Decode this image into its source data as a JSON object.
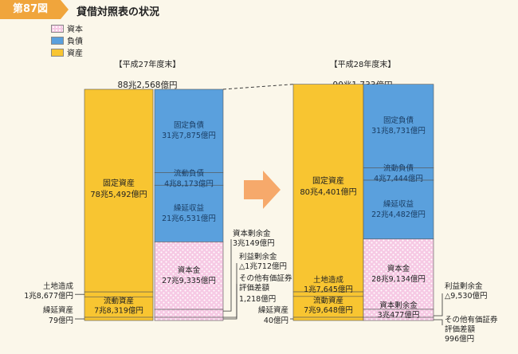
{
  "figure": {
    "badge": "第87図",
    "title": "貸借対照表の状況"
  },
  "legend": [
    {
      "label": "資本",
      "color": "#f6c9e4"
    },
    {
      "label": "負債",
      "color": "#5aa0dd"
    },
    {
      "label": "資産",
      "color": "#f8c531"
    }
  ],
  "colors": {
    "asset": "#f8c531",
    "liability": "#5aa0dd",
    "capital": "#f6c9e4",
    "arrow": "#f6a96b"
  },
  "chart_data": [
    {
      "type": "bar",
      "period": "【平成27年度末】",
      "total_label": "88兆2,568億円",
      "total_oku": 882568,
      "assets": [
        {
          "name": "固定資産",
          "value_label": "78兆5,492億円",
          "value_oku": 785492
        },
        {
          "name": "土地造成",
          "value_label": "1兆8,677億円",
          "value_oku": 18677
        },
        {
          "name": "流動資産",
          "value_label": "7兆8,319億円",
          "value_oku": 78319
        },
        {
          "name": "繰延資産",
          "value_label": "79億円",
          "value_oku": 79
        }
      ],
      "liabilities": [
        {
          "name": "固定負債",
          "value_label": "31兆7,875億円",
          "value_oku": 317875
        },
        {
          "name": "流動負債",
          "value_label": "4兆8,173億円",
          "value_oku": 48173
        },
        {
          "name": "繰延収益",
          "value_label": "21兆6,531億円",
          "value_oku": 216531
        }
      ],
      "capital": [
        {
          "name": "資本金",
          "value_label": "27兆9,335億円",
          "value_oku": 279335
        },
        {
          "name": "資本剰余金",
          "value_label": "3兆149億円",
          "value_oku": 30149
        },
        {
          "name": "利益剰余金",
          "value_label": "△1兆712億円",
          "value_oku": -10712
        },
        {
          "name": "その他有価証券評価差額",
          "value_label": "1,218億円",
          "value_oku": 1218
        }
      ]
    },
    {
      "type": "bar",
      "period": "【平成28年度末】",
      "total_label": "90兆1,733億円",
      "total_oku": 901733,
      "assets": [
        {
          "name": "固定資産",
          "value_label": "80兆4,401億円",
          "value_oku": 804401
        },
        {
          "name": "土地造成",
          "value_label": "1兆7,645億円",
          "value_oku": 17645
        },
        {
          "name": "流動資産",
          "value_label": "7兆9,648億円",
          "value_oku": 79648
        },
        {
          "name": "繰延資産",
          "value_label": "40億円",
          "value_oku": 40
        }
      ],
      "liabilities": [
        {
          "name": "固定負債",
          "value_label": "31兆8,731億円",
          "value_oku": 318731
        },
        {
          "name": "流動負債",
          "value_label": "4兆7,444億円",
          "value_oku": 47444
        },
        {
          "name": "繰延収益",
          "value_label": "22兆4,482億円",
          "value_oku": 224482
        }
      ],
      "capital": [
        {
          "name": "資本金",
          "value_label": "28兆9,134億円",
          "value_oku": 289134
        },
        {
          "name": "資本剰余金",
          "value_label": "3兆477億円",
          "value_oku": 30477
        },
        {
          "name": "利益剰余金",
          "value_label": "△9,530億円",
          "value_oku": -9530
        },
        {
          "name": "その他有価証券評価差額",
          "value_label": "996億円",
          "value_oku": 996
        }
      ]
    }
  ]
}
